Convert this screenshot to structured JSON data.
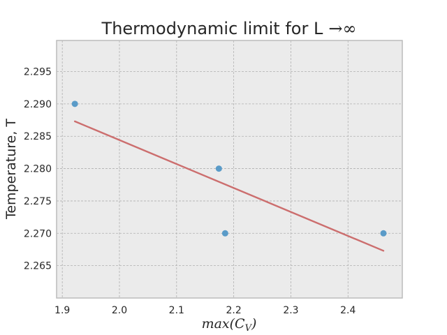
{
  "chart_data": {
    "type": "scatter",
    "title_text": "Thermodynamic limit for L",
    "title_math": "→∞",
    "xlabel_main": "max(C",
    "xlabel_sub": "V",
    "xlabel_close": ")",
    "ylabel": "Temperature, T",
    "xlim": [
      1.89,
      2.495
    ],
    "ylim": [
      2.26,
      2.2998
    ],
    "x_ticks": [
      "1.9",
      "2.0",
      "2.1",
      "2.2",
      "2.3",
      "2.4"
    ],
    "y_ticks": [
      "2.265",
      "2.270",
      "2.275",
      "2.280",
      "2.285",
      "2.290",
      "2.295"
    ],
    "grid": true,
    "series": [
      {
        "kind": "points",
        "color": "#5a9bc8",
        "points": [
          {
            "x": 1.922,
            "y": 2.29
          },
          {
            "x": 2.174,
            "y": 2.28
          },
          {
            "x": 2.185,
            "y": 2.27
          },
          {
            "x": 2.462,
            "y": 2.27
          }
        ]
      },
      {
        "kind": "fit-line",
        "color": "#cc6e6e",
        "points": [
          {
            "x": 1.922,
            "y": 2.2873
          },
          {
            "x": 2.462,
            "y": 2.2673
          }
        ]
      }
    ]
  },
  "colors": {
    "plot_background": "#ebebeb",
    "grid": "#b0b0b0",
    "frame": "#bcbcbc"
  }
}
